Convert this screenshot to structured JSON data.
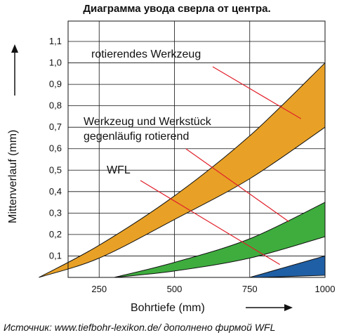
{
  "chart_data": {
    "type": "area",
    "title": "Диаграмма увода сверла от центра.",
    "xlabel": "Bohrtiefe (mm)",
    "ylabel": "Mittenverlauf (mm)",
    "xlim": [
      0,
      1000
    ],
    "ylim": [
      0,
      1.15
    ],
    "x_ticks": [
      "250",
      "500",
      "750",
      "1000"
    ],
    "y_ticks": [
      "0,1",
      "0,2",
      "0,3",
      "0,4",
      "0,5",
      "0,6",
      "0,7",
      "0,8",
      "0,9",
      "1,0",
      "1,1"
    ],
    "grid": true,
    "bands": [
      {
        "name": "rotierendes Werkzeug",
        "color": "#E8A126",
        "upper": [
          [
            50,
            0
          ],
          [
            250,
            0.15
          ],
          [
            500,
            0.38
          ],
          [
            750,
            0.66
          ],
          [
            1000,
            1.0
          ]
        ],
        "lower": [
          [
            50,
            0
          ],
          [
            250,
            0.09
          ],
          [
            500,
            0.27
          ],
          [
            750,
            0.46
          ],
          [
            1000,
            0.7
          ]
        ]
      },
      {
        "name": "Werkzeug und Werkstück gegenläufig rotierend",
        "color": "#3EAD3E",
        "upper": [
          [
            300,
            0
          ],
          [
            500,
            0.07
          ],
          [
            750,
            0.18
          ],
          [
            1000,
            0.35
          ]
        ],
        "lower": [
          [
            300,
            0
          ],
          [
            500,
            0.03
          ],
          [
            750,
            0.09
          ],
          [
            1000,
            0.19
          ]
        ]
      },
      {
        "name": "WFL",
        "color": "#1F5FA5",
        "upper": [
          [
            750,
            0
          ],
          [
            850,
            0.04
          ],
          [
            1000,
            0.1
          ]
        ],
        "lower": [
          [
            780,
            0
          ],
          [
            1000,
            0.01
          ]
        ]
      }
    ],
    "annotations": [
      {
        "text": "rotierendes Werkzeug",
        "target": [
          920,
          0.74
        ]
      },
      {
        "text": "Werkzeug und Werkstück",
        "target": [
          880,
          0.26
        ]
      },
      {
        "text": "gegenläufig rotierend",
        "target": null
      },
      {
        "text": "WFL",
        "target": [
          850,
          0.06
        ]
      }
    ],
    "source": "Источник:  www.tiefbohr-lexikon.de/ дополнено фирмой WFL"
  }
}
